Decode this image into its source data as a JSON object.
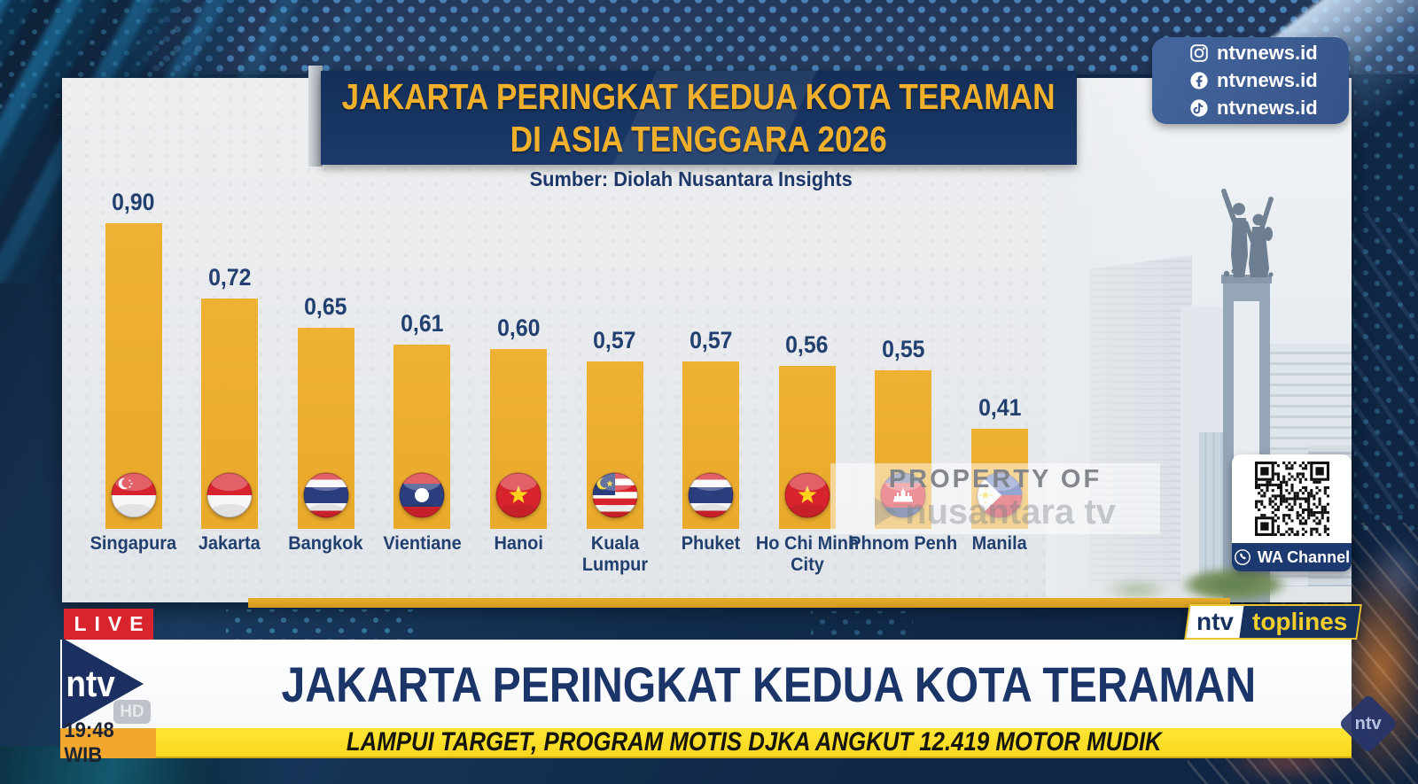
{
  "chart_data": {
    "type": "bar",
    "title": "JAKARTA PERINGKAT KEDUA KOTA TERAMAN DI ASIA TENGGARA 2026",
    "title_lines": [
      "JAKARTA PERINGKAT KEDUA KOTA TERAMAN",
      "DI ASIA TENGGARA 2026"
    ],
    "source": "Sumber: Diolah Nusantara Insights",
    "categories": [
      "Singapura",
      "Jakarta",
      "Bangkok",
      "Vientiane",
      "Hanoi",
      "Kuala Lumpur",
      "Phuket",
      "Ho Chi Minh City",
      "Phnom Penh",
      "Manila"
    ],
    "values": [
      0.9,
      0.72,
      0.65,
      0.61,
      0.6,
      0.57,
      0.57,
      0.56,
      0.55,
      0.41
    ],
    "value_labels": [
      "0,90",
      "0,72",
      "0,65",
      "0,61",
      "0,60",
      "0,57",
      "0,57",
      "0,56",
      "0,55",
      "0,41"
    ],
    "flags": [
      "singapore",
      "indonesia",
      "thailand",
      "laos",
      "vietnam",
      "malaysia",
      "thailand",
      "vietnam",
      "cambodia",
      "philippines"
    ],
    "xlabel": "",
    "ylabel": "",
    "ylim": [
      0,
      1
    ],
    "grid": false,
    "legend": null,
    "bar_color": "#E9A92B",
    "label_color": "#22406F"
  },
  "watermark": {
    "line1": "PROPERTY OF",
    "line2": "nusantara tv"
  },
  "social": {
    "items": [
      {
        "icon": "instagram-icon",
        "label": "ntvnews.id"
      },
      {
        "icon": "facebook-icon",
        "label": "ntvnews.id"
      },
      {
        "icon": "tiktok-icon",
        "label": "ntvnews.id"
      }
    ]
  },
  "qr": {
    "caption": "WA Channel",
    "icon": "whatsapp-icon"
  },
  "status": {
    "live_label": "LIVE",
    "time": "19:48 WIB",
    "brand": "ntv",
    "brand_quality": "HD",
    "toplines_brand": "ntv",
    "toplines_label": "toplines",
    "corner_brand": "ntv"
  },
  "lower_third": {
    "headline": "JAKARTA PERINGKAT KEDUA KOTA TERAMAN",
    "ticker": "LAMPUI TARGET, PROGRAM MOTIS DJKA ANGKUT 12.419 MOTOR MUDIK"
  },
  "colors": {
    "bar": "#E9A92B",
    "navy_text": "#22406F",
    "banner_bg": "#173363",
    "banner_text": "#F0B02C",
    "ticker_bg": "#FFE22F",
    "live_bg": "#D8242C",
    "time_bg": "#F2A72E",
    "social_bg": "#3E5F97",
    "gold_bar": "#DFA126"
  }
}
